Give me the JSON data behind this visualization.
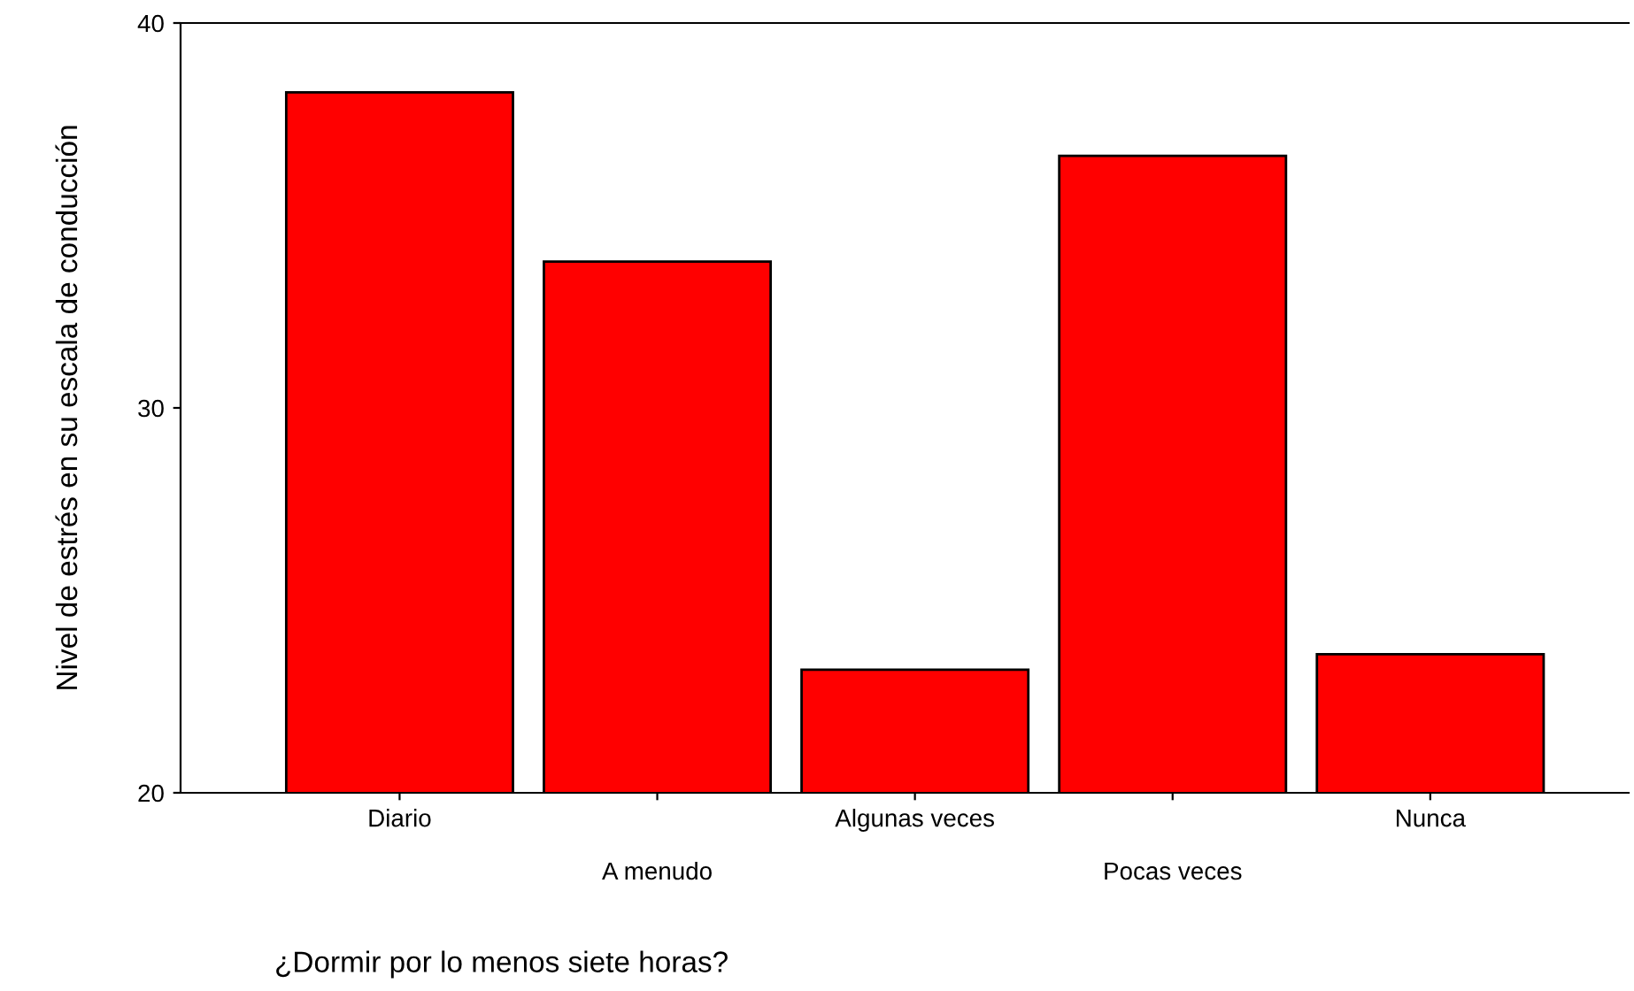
{
  "chart_data": {
    "type": "bar",
    "categories": [
      "Diario",
      "A menudo",
      "Algunas veces",
      "Pocas veces",
      "Nunca"
    ],
    "values": [
      38.2,
      33.8,
      23.2,
      36.55,
      23.6
    ],
    "color": "#ff0000",
    "ylim": [
      20,
      40
    ],
    "yticks": [
      20,
      30,
      40
    ],
    "ylabel": "Nivel de estrés en su escala de conducción",
    "xlabel": "¿Dormir por lo menos siete horas?",
    "grid": false,
    "legend": false
  }
}
